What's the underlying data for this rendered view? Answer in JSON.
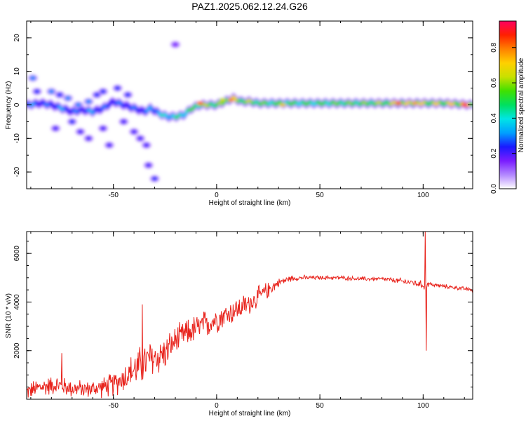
{
  "page": {
    "title": "PAZ1.2025.062.12.24.G26"
  },
  "chart_data": [
    {
      "type": "heatmap",
      "title": "PAZ1.2025.062.12.24.G26",
      "xlabel": "Height of straight line (km)",
      "ylabel": "Frequency (Hz)",
      "xlim": [
        -92,
        124
      ],
      "ylim": [
        -25,
        25
      ],
      "x_ticks": [
        "-50",
        "0",
        "50",
        "100"
      ],
      "y_ticks": [
        "20",
        "10",
        "0",
        "-10",
        "-20"
      ],
      "colorbar": {
        "label": "Normalized spectral amplitude",
        "range": [
          0,
          0.95
        ],
        "ticks": [
          "0.0",
          "0.2",
          "0.4",
          "0.6",
          "0.8"
        ],
        "colors": [
          "#ffffff",
          "#b388ff",
          "#7a1cff",
          "#1a1aff",
          "#00a0ff",
          "#00e5e5",
          "#00e060",
          "#40e000",
          "#c8e000",
          "#ffd000",
          "#ff8000",
          "#ff2000",
          "#ff0060"
        ]
      },
      "ridge": {
        "x": [
          -92,
          -85,
          -80,
          -75,
          -70,
          -65,
          -60,
          -55,
          -50,
          -45,
          -40,
          -35,
          -32,
          -28,
          -24,
          -20,
          -16,
          -12,
          -8,
          -4,
          0,
          4,
          8,
          12,
          16,
          20,
          30,
          40,
          50,
          60,
          70,
          80,
          90,
          100,
          110,
          124
        ],
        "freq": [
          0,
          0.5,
          0,
          -1,
          -2,
          -1.5,
          -2,
          -1,
          1,
          0,
          -1,
          -2,
          -1,
          -2.5,
          -3.5,
          -3.5,
          -3,
          -1,
          0,
          0,
          0,
          1,
          2,
          1,
          1,
          0.5,
          0.5,
          0.5,
          0.5,
          0.5,
          0.5,
          0.5,
          0.5,
          0.5,
          0.5,
          0
        ],
        "amp": [
          0.35,
          0.3,
          0.3,
          0.35,
          0.3,
          0.3,
          0.35,
          0.3,
          0.3,
          0.3,
          0.3,
          0.3,
          0.35,
          0.4,
          0.45,
          0.45,
          0.5,
          0.55,
          0.6,
          0.65,
          0.6,
          0.65,
          0.7,
          0.65,
          0.65,
          0.6,
          0.55,
          0.55,
          0.55,
          0.6,
          0.6,
          0.65,
          0.7,
          0.7,
          0.7,
          0.8
        ]
      },
      "hotspots": [
        {
          "x": -8,
          "freq": 0.5,
          "amp": 0.9
        },
        {
          "x": 7,
          "freq": 1.5,
          "amp": 0.85
        },
        {
          "x": 88,
          "freq": 0.5,
          "amp": 0.9
        },
        {
          "x": 96,
          "freq": 0.5,
          "amp": 0.8
        },
        {
          "x": 120,
          "freq": 0,
          "amp": 0.95
        },
        {
          "x": 32,
          "freq": 0,
          "amp": 0.75
        },
        {
          "x": 3,
          "freq": 1.5,
          "amp": 0.7
        }
      ],
      "scatter_blobs": [
        {
          "x": -89,
          "freq": 8,
          "amp": 0.3
        },
        {
          "x": -87,
          "freq": 4,
          "amp": 0.25
        },
        {
          "x": -80,
          "freq": 4,
          "amp": 0.3
        },
        {
          "x": -76,
          "freq": 3,
          "amp": 0.25
        },
        {
          "x": -72,
          "freq": 2,
          "amp": 0.3
        },
        {
          "x": -67,
          "freq": 0,
          "amp": 0.3
        },
        {
          "x": -62,
          "freq": 1,
          "amp": 0.3
        },
        {
          "x": -58,
          "freq": 3,
          "amp": 0.25
        },
        {
          "x": -55,
          "freq": 4,
          "amp": 0.25
        },
        {
          "x": -48,
          "freq": 5,
          "amp": 0.25
        },
        {
          "x": -43,
          "freq": 3,
          "amp": 0.25
        },
        {
          "x": -78,
          "freq": -7,
          "amp": 0.2
        },
        {
          "x": -70,
          "freq": -5,
          "amp": 0.25
        },
        {
          "x": -66,
          "freq": -8,
          "amp": 0.2
        },
        {
          "x": -62,
          "freq": -10,
          "amp": 0.2
        },
        {
          "x": -55,
          "freq": -7,
          "amp": 0.2
        },
        {
          "x": -52,
          "freq": -12,
          "amp": 0.2
        },
        {
          "x": -45,
          "freq": -5,
          "amp": 0.2
        },
        {
          "x": -40,
          "freq": -8,
          "amp": 0.2
        },
        {
          "x": -37,
          "freq": -10,
          "amp": 0.2
        },
        {
          "x": -34,
          "freq": -12,
          "amp": 0.2
        },
        {
          "x": -33,
          "freq": -18,
          "amp": 0.2
        },
        {
          "x": -30,
          "freq": -22,
          "amp": 0.25
        },
        {
          "x": -20,
          "freq": 18,
          "amp": 0.15
        }
      ]
    },
    {
      "type": "line",
      "xlabel": "Height of straight line (km)",
      "ylabel": "SNR (10 * v/v)",
      "xlim": [
        -92,
        124
      ],
      "ylim": [
        0,
        6900
      ],
      "x_ticks": [
        "-50",
        "0",
        "50",
        "100"
      ],
      "y_ticks": [
        "2000",
        "4000",
        "6000"
      ],
      "series": [
        {
          "color": "#e8231c",
          "envelope": {
            "x": [
              -92,
              -85,
              -78,
              -70,
              -62,
              -55,
              -50,
              -45,
              -40,
              -35,
              -30,
              -25,
              -20,
              -15,
              -10,
              -5,
              0,
              5,
              10,
              15,
              20,
              25,
              30,
              35,
              40,
              50,
              60,
              70,
              80,
              90,
              95,
              100,
              101,
              102,
              105,
              110,
              115,
              124
            ],
            "y": [
              300,
              500,
              600,
              450,
              400,
              500,
              600,
              900,
              1200,
              1500,
              1700,
              1900,
              2400,
              2700,
              2900,
              3100,
              3300,
              3500,
              3700,
              3900,
              4200,
              4500,
              4800,
              4950,
              5000,
              5000,
              5000,
              4950,
              4950,
              4850,
              4800,
              4700,
              4600,
              4750,
              4700,
              4650,
              4600,
              4500
            ],
            "noise": [
              400,
              500,
              450,
              450,
              400,
              500,
              600,
              700,
              900,
              1000,
              1000,
              800,
              700,
              650,
              700,
              700,
              650,
              600,
              600,
              550,
              500,
              400,
              200,
              150,
              120,
              100,
              100,
              100,
              100,
              150,
              150,
              200,
              200,
              150,
              100,
              100,
              100,
              100
            ]
          },
          "spikes": [
            {
              "x": 101,
              "y": 6900
            },
            {
              "x": 101.5,
              "y": 2000
            },
            {
              "x": -36,
              "y": 3900
            },
            {
              "x": -75,
              "y": 1900
            }
          ]
        }
      ]
    }
  ]
}
